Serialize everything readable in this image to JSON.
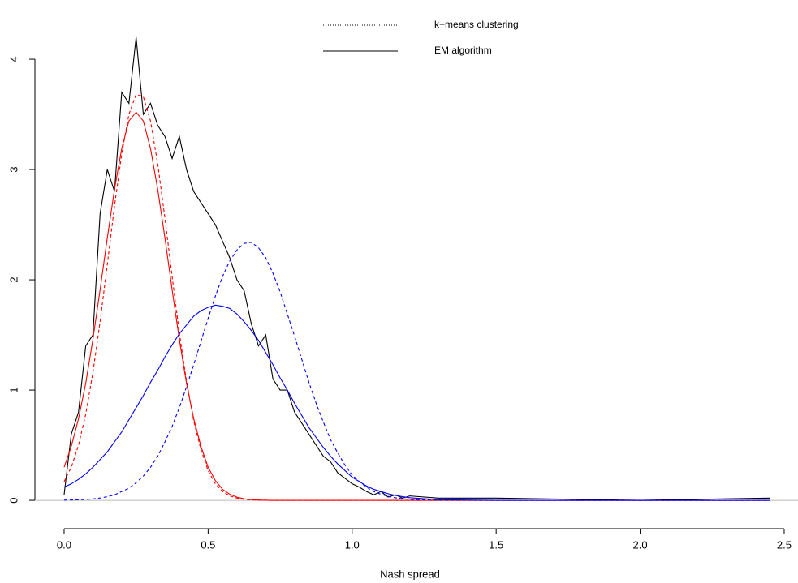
{
  "chart_data": {
    "type": "line",
    "x_label": "Nash spread",
    "x": [
      0,
      0.025,
      0.05,
      0.075,
      0.1,
      0.125,
      0.15,
      0.175,
      0.2,
      0.225,
      0.25,
      0.275,
      0.3,
      0.325,
      0.35,
      0.375,
      0.4,
      0.425,
      0.45,
      0.475,
      0.5,
      0.525,
      0.55,
      0.575,
      0.6,
      0.625,
      0.65,
      0.675,
      0.7,
      0.725,
      0.75,
      0.775,
      0.8,
      0.825,
      0.85,
      0.875,
      0.9,
      0.925,
      0.95,
      0.975,
      1.0,
      1.025,
      1.05,
      1.075,
      1.1,
      1.125,
      1.15,
      1.175,
      1.2,
      1.3,
      1.5,
      2.0,
      2.45
    ],
    "series": [
      {
        "color": "#000000",
        "style": "solid",
        "values": [
          0.05,
          0.6,
          0.8,
          1.4,
          1.5,
          2.6,
          3.0,
          2.8,
          3.7,
          3.6,
          4.2,
          3.5,
          3.6,
          3.4,
          3.3,
          3.1,
          3.3,
          3.0,
          2.8,
          2.7,
          2.6,
          2.5,
          2.35,
          2.2,
          2.0,
          1.9,
          1.6,
          1.4,
          1.5,
          1.1,
          1.0,
          1.0,
          0.8,
          0.7,
          0.6,
          0.5,
          0.4,
          0.35,
          0.25,
          0.2,
          0.15,
          0.12,
          0.08,
          0.05,
          0.08,
          0.03,
          0.05,
          0.02,
          0.04,
          0.02,
          0.02,
          0,
          0.02
        ]
      },
      {
        "color": "#ff0000",
        "style": "dashed",
        "values": [
          0.17,
          0.3,
          0.5,
          0.78,
          1.16,
          1.62,
          2.14,
          2.67,
          3.14,
          3.5,
          3.68,
          3.66,
          3.44,
          3.05,
          2.56,
          2.03,
          1.52,
          1.08,
          0.72,
          0.46,
          0.27,
          0.15,
          0.08,
          0.041,
          0.02,
          0.009,
          0.004,
          0.002,
          0.001,
          0,
          0,
          0,
          0,
          0,
          0,
          0,
          0,
          0,
          0,
          0,
          0,
          0,
          0,
          0,
          0,
          0,
          0,
          0,
          0,
          0,
          0,
          0,
          0
        ]
      },
      {
        "color": "#ff0000",
        "style": "solid",
        "values": [
          0.3,
          0.49,
          0.74,
          1.06,
          1.46,
          1.91,
          2.38,
          2.82,
          3.19,
          3.44,
          3.52,
          3.44,
          3.19,
          2.82,
          2.38,
          1.91,
          1.46,
          1.06,
          0.74,
          0.49,
          0.3,
          0.18,
          0.1,
          0.056,
          0.029,
          0.014,
          0.007,
          0.003,
          0.001,
          0,
          0,
          0,
          0,
          0,
          0,
          0,
          0,
          0,
          0,
          0,
          0,
          0,
          0,
          0,
          0,
          0,
          0,
          0,
          0,
          0,
          0,
          0,
          0
        ]
      },
      {
        "color": "#0000ff",
        "style": "dashed",
        "values": [
          0.002,
          0.003,
          0.005,
          0.008,
          0.013,
          0.021,
          0.033,
          0.05,
          0.08,
          0.11,
          0.16,
          0.22,
          0.3,
          0.4,
          0.53,
          0.67,
          0.84,
          1.03,
          1.23,
          1.44,
          1.65,
          1.85,
          2.03,
          2.17,
          2.27,
          2.33,
          2.34,
          2.29,
          2.2,
          2.06,
          1.89,
          1.69,
          1.49,
          1.28,
          1.07,
          0.88,
          0.71,
          0.55,
          0.43,
          0.32,
          0.23,
          0.17,
          0.12,
          0.08,
          0.055,
          0.036,
          0.023,
          0.015,
          0.009,
          0.001,
          0,
          0,
          0
        ]
      },
      {
        "color": "#0000ff",
        "style": "solid",
        "values": [
          0.12,
          0.15,
          0.19,
          0.24,
          0.3,
          0.37,
          0.44,
          0.53,
          0.62,
          0.73,
          0.84,
          0.95,
          1.07,
          1.18,
          1.3,
          1.41,
          1.51,
          1.59,
          1.67,
          1.72,
          1.75,
          1.77,
          1.76,
          1.74,
          1.69,
          1.62,
          1.54,
          1.45,
          1.34,
          1.23,
          1.11,
          1.0,
          0.88,
          0.77,
          0.66,
          0.57,
          0.48,
          0.4,
          0.33,
          0.27,
          0.21,
          0.17,
          0.13,
          0.1,
          0.08,
          0.06,
          0.045,
          0.033,
          0.024,
          0.006,
          0,
          0,
          0
        ]
      }
    ],
    "legend": [
      {
        "label": "k−means clustering",
        "style": "dotted"
      },
      {
        "label": "EM algorithm",
        "style": "solid"
      }
    ],
    "hline": 0,
    "hline_color": "#bbbbbb",
    "xlim": [
      -0.098,
      2.548
    ],
    "ylim": [
      -0.176,
      4.576
    ],
    "xticks": [
      {
        "value": 0,
        "label": "0.0"
      },
      {
        "value": 0.5,
        "label": "0.5"
      },
      {
        "value": 1,
        "label": "1.0"
      },
      {
        "value": 1.5,
        "label": "1.5"
      },
      {
        "value": 2,
        "label": "2.0"
      },
      {
        "value": 2.5,
        "label": "2.5"
      }
    ],
    "yticks": [
      0,
      1,
      2,
      3,
      4
    ]
  }
}
